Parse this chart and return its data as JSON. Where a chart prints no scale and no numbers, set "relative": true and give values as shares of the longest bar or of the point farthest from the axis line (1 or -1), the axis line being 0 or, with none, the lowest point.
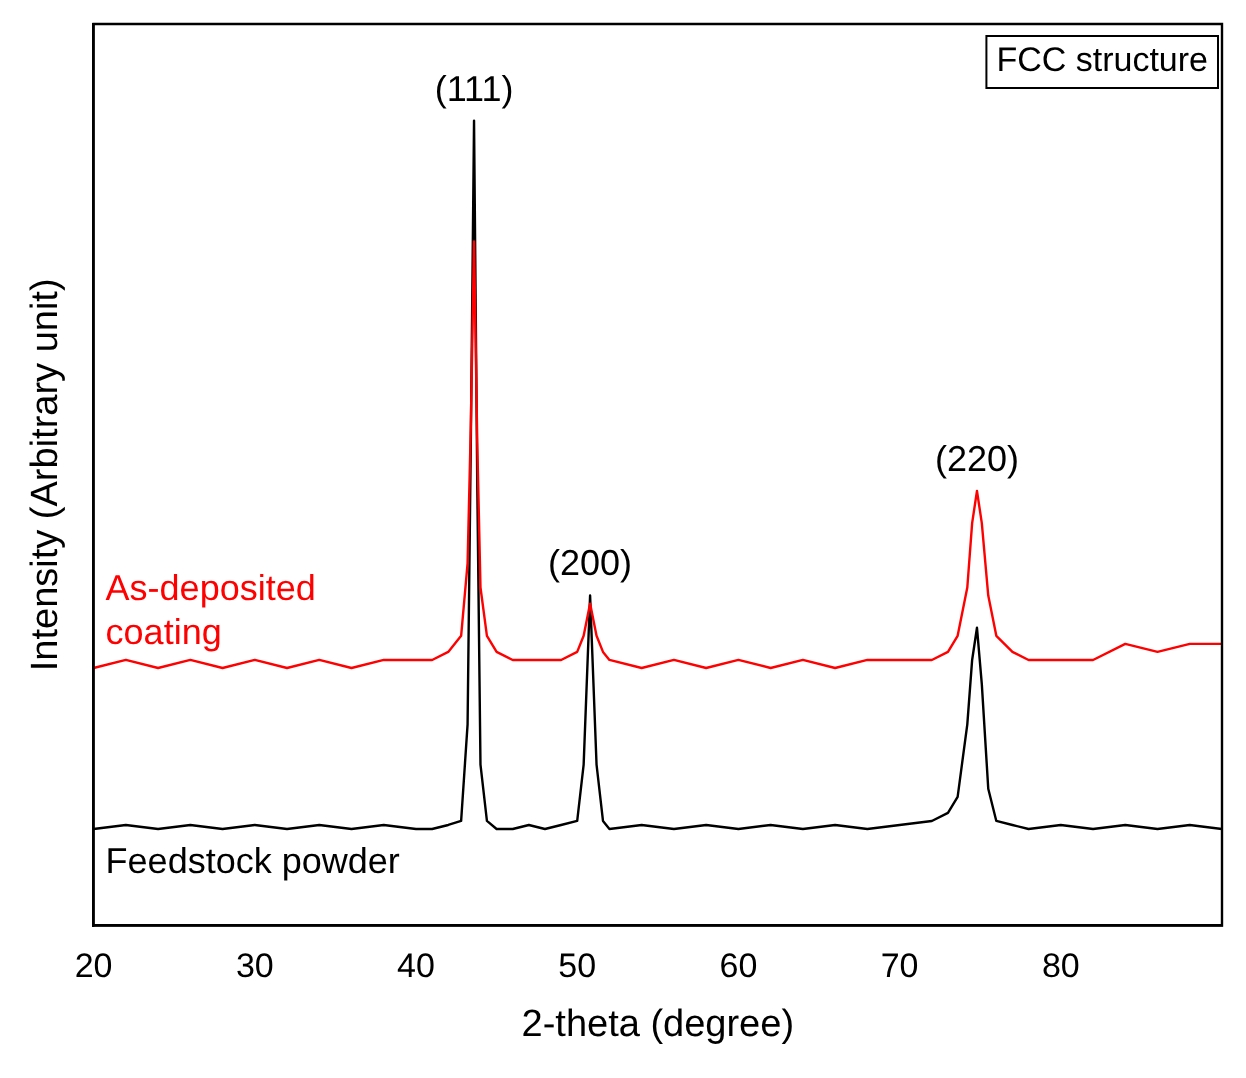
{
  "chart_data": {
    "type": "line",
    "xlabel": "2-theta (degree)",
    "ylabel": "Intensity (Arbitrary unit)",
    "relative": true,
    "xlim": [
      20,
      90
    ],
    "xticks": [
      20,
      30,
      40,
      50,
      60,
      70,
      80
    ],
    "x": [
      20,
      22,
      24,
      26,
      28,
      30,
      32,
      34,
      36,
      38,
      40,
      41,
      42,
      42.8,
      43.2,
      43.4,
      43.6,
      43.8,
      44,
      44.4,
      45,
      46,
      47,
      48,
      49,
      50,
      50.4,
      50.8,
      51.2,
      51.6,
      52,
      54,
      56,
      58,
      60,
      62,
      64,
      66,
      68,
      70,
      72,
      73,
      73.6,
      74.2,
      74.5,
      74.8,
      75.1,
      75.5,
      76,
      77,
      78,
      80,
      82,
      84,
      86,
      88,
      90
    ],
    "series": [
      {
        "name": "As-deposited\ncoating",
        "color": "#ff0000",
        "values": [
          0.32,
          0.33,
          0.32,
          0.33,
          0.32,
          0.33,
          0.32,
          0.33,
          0.32,
          0.33,
          0.33,
          0.33,
          0.34,
          0.36,
          0.45,
          0.62,
          0.85,
          0.6,
          0.42,
          0.36,
          0.34,
          0.33,
          0.33,
          0.33,
          0.33,
          0.34,
          0.36,
          0.4,
          0.36,
          0.34,
          0.33,
          0.32,
          0.33,
          0.32,
          0.33,
          0.32,
          0.33,
          0.32,
          0.33,
          0.33,
          0.33,
          0.34,
          0.36,
          0.42,
          0.5,
          0.54,
          0.5,
          0.41,
          0.36,
          0.34,
          0.33,
          0.33,
          0.33,
          0.35,
          0.34,
          0.35,
          0.35
        ]
      },
      {
        "name": "Feedstock powder",
        "color": "#000000",
        "values": [
          0.12,
          0.125,
          0.12,
          0.125,
          0.12,
          0.125,
          0.12,
          0.125,
          0.12,
          0.125,
          0.12,
          0.12,
          0.125,
          0.13,
          0.25,
          0.6,
          1.0,
          0.55,
          0.2,
          0.13,
          0.12,
          0.12,
          0.125,
          0.12,
          0.125,
          0.13,
          0.2,
          0.41,
          0.2,
          0.13,
          0.12,
          0.125,
          0.12,
          0.125,
          0.12,
          0.125,
          0.12,
          0.125,
          0.12,
          0.125,
          0.13,
          0.14,
          0.16,
          0.25,
          0.33,
          0.37,
          0.3,
          0.17,
          0.13,
          0.125,
          0.12,
          0.125,
          0.12,
          0.125,
          0.12,
          0.125,
          0.12
        ]
      }
    ],
    "annotations": [
      {
        "text": "(111)",
        "x": 43.6,
        "y": 1.0
      },
      {
        "text": "(200)",
        "x": 50.8,
        "y": 0.41
      },
      {
        "text": "(220)",
        "x": 74.8,
        "y": 0.54
      },
      "FCC structure"
    ],
    "legend": false,
    "grid": false,
    "marker": "none",
    "line_style": "solid"
  }
}
